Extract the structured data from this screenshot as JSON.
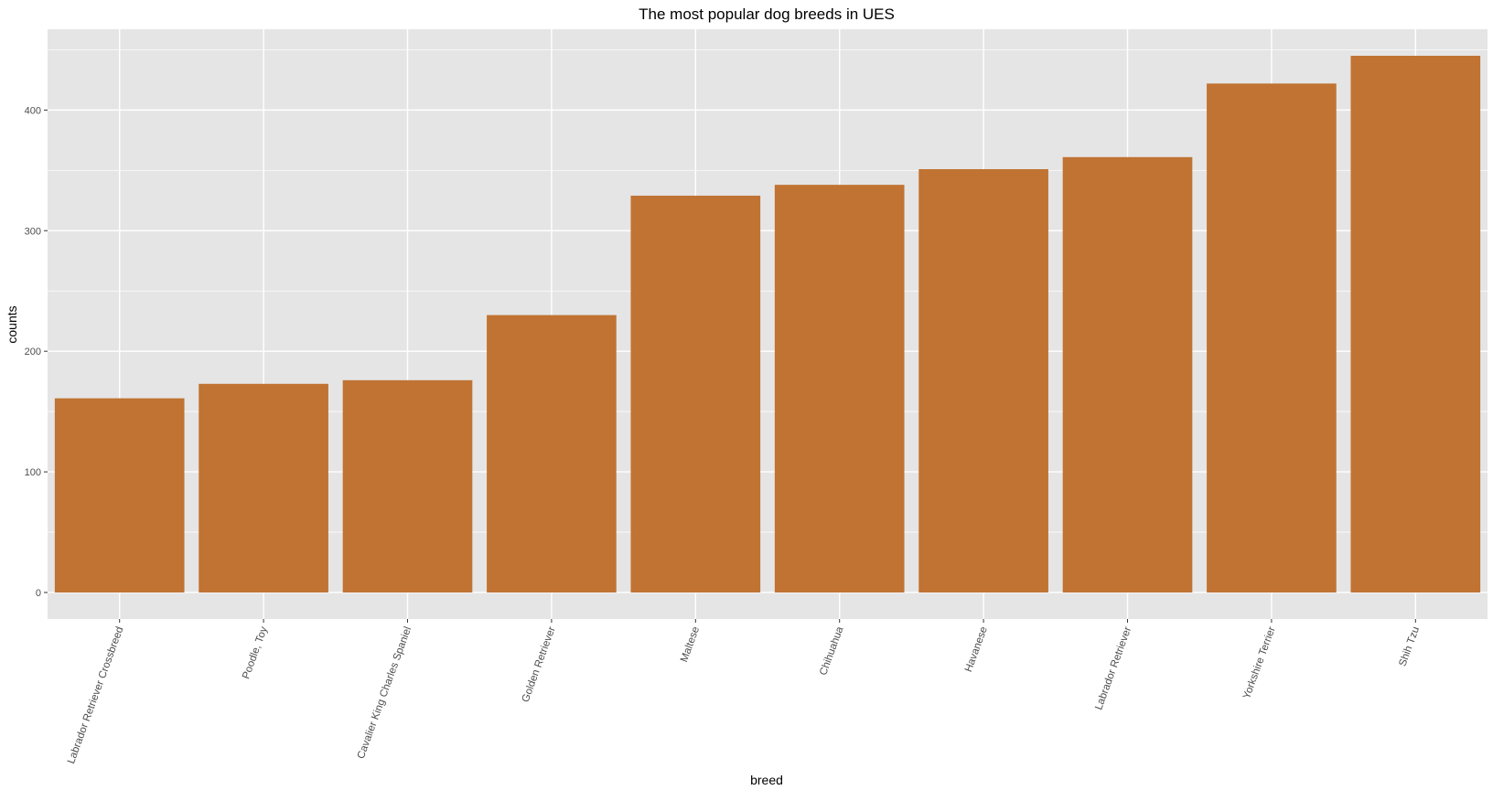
{
  "chart_data": {
    "type": "bar",
    "title": "The most popular dog breeds in UES",
    "xlabel": "breed",
    "ylabel": "counts",
    "categories": [
      "Labrador Retriever Crossbreed",
      "Poodle, Toy",
      "Cavalier King Charles Spaniel",
      "Golden Retriever",
      "Maltese",
      "Chihuahua",
      "Havanese",
      "Labrador Retriever",
      "Yorkshire Terrier",
      "Shih Tzu"
    ],
    "values": [
      161,
      173,
      176,
      230,
      329,
      338,
      351,
      361,
      422,
      445
    ],
    "ylim": [
      -22,
      467
    ],
    "yticks": [
      0,
      100,
      200,
      300,
      400
    ],
    "ytick_labels": [
      "0",
      "100",
      "200",
      "300",
      "400"
    ],
    "grid": true,
    "legend": "none",
    "colors": {
      "bar": "#c07332",
      "panel_background": "#e5e5e5",
      "grid_line": "#ffffff",
      "tick_text": "#4d4d4d",
      "axis_tick": "#333333"
    }
  }
}
